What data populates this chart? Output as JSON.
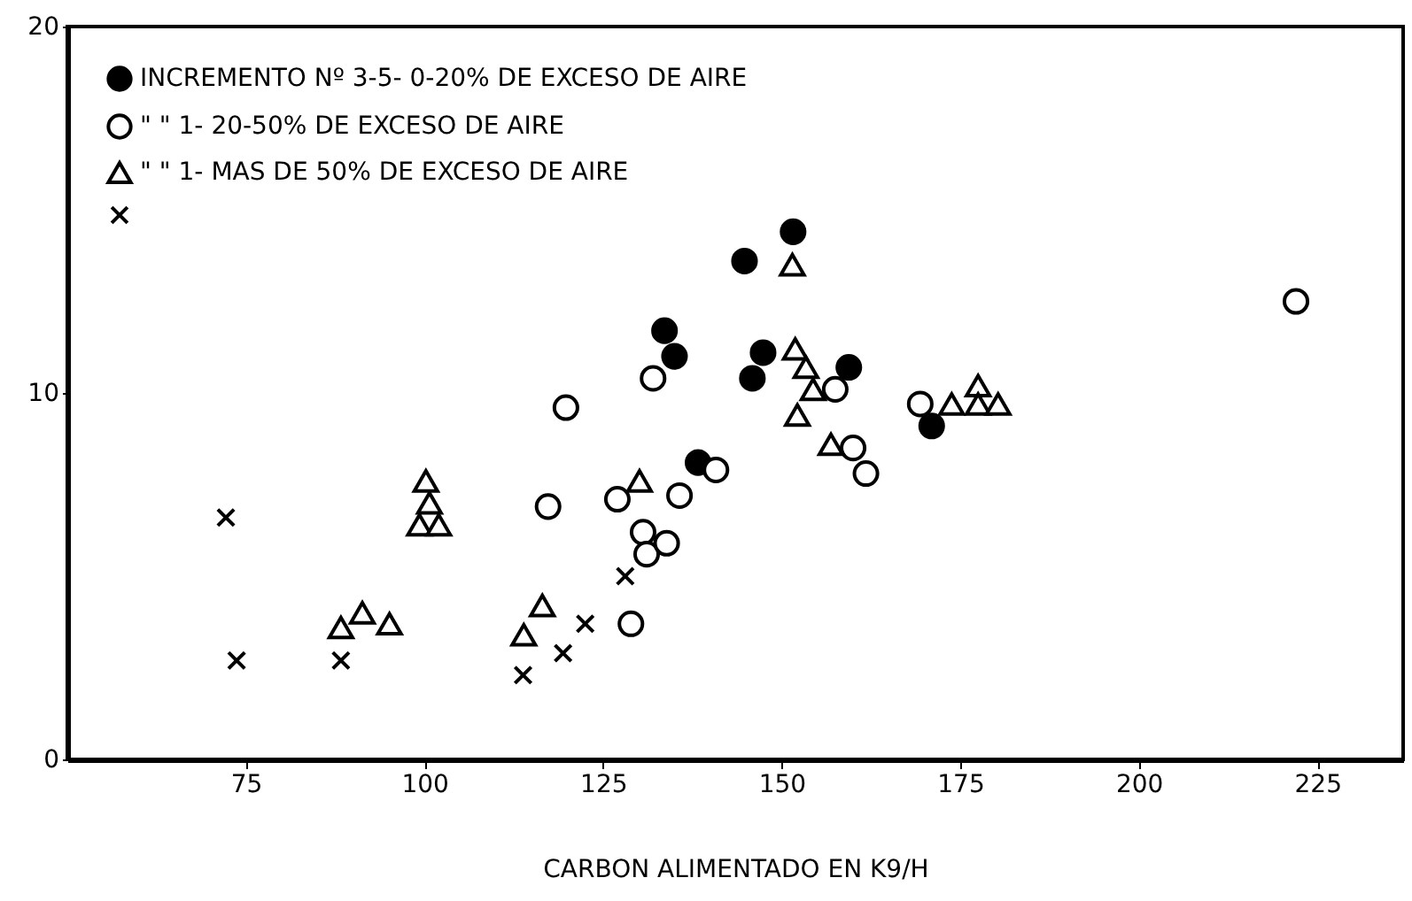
{
  "chart_data": {
    "type": "scatter",
    "xlabel": "CARBON ALIMENTADO EN K9/H",
    "xlim": [
      50,
      237
    ],
    "xticks": [
      75,
      100,
      125,
      150,
      175,
      200,
      225
    ],
    "ylim": [
      0,
      20
    ],
    "yticks": [
      0,
      10,
      20
    ],
    "grid": false,
    "legend": "top left",
    "series": [
      {
        "name": "INCREMENTO Nº 3-5- 0-20% DE EXCESO DE AIRE",
        "color": "#000000",
        "marker": "circle",
        "x": [
          133.6,
          135.0,
          144.8,
          145.9,
          147.4,
          151.6,
          159.4,
          171.0,
          138.3
        ],
        "values": [
          11.7,
          11.0,
          13.6,
          10.4,
          11.1,
          14.4,
          10.7,
          9.1,
          8.1
        ]
      },
      {
        "name": "\" \" 1- 20-50% DE EXCESO DE AIRE",
        "color": "#ffffff",
        "marker": "circle",
        "x": [
          119.8,
          117.3,
          127.0,
          128.9,
          130.6,
          131.1,
          133.9,
          132.0,
          135.7,
          140.8,
          157.5,
          160.0,
          161.8,
          169.4,
          222.0
        ],
        "values": [
          9.6,
          6.9,
          7.1,
          3.7,
          6.2,
          5.6,
          5.9,
          10.4,
          7.2,
          7.9,
          10.1,
          8.5,
          7.8,
          9.7,
          12.5
        ]
      },
      {
        "name": "\" \" 1- MAS DE 50% DE EXCESO DE AIRE",
        "color": "#ffffff",
        "marker": "triangle",
        "x": [
          88.3,
          91.3,
          95.1,
          99.3,
          100.2,
          100.7,
          102.0,
          113.9,
          116.5,
          130.1,
          151.5,
          151.9,
          152.2,
          153.4,
          154.4,
          156.9,
          173.8,
          177.5,
          177.5,
          180.3
        ],
        "values": [
          3.6,
          4.0,
          3.7,
          6.4,
          7.6,
          7.0,
          6.4,
          3.4,
          4.2,
          7.6,
          13.5,
          11.2,
          9.4,
          10.7,
          10.1,
          8.6,
          9.7,
          10.2,
          9.7,
          9.7
        ]
      },
      {
        "color": "#000000",
        "marker": "cross",
        "x": [
          72.2,
          73.7,
          88.3,
          113.8,
          119.4,
          122.5,
          128.1
        ],
        "values": [
          6.6,
          2.7,
          2.7,
          2.3,
          2.9,
          3.7,
          5.0
        ]
      }
    ]
  }
}
